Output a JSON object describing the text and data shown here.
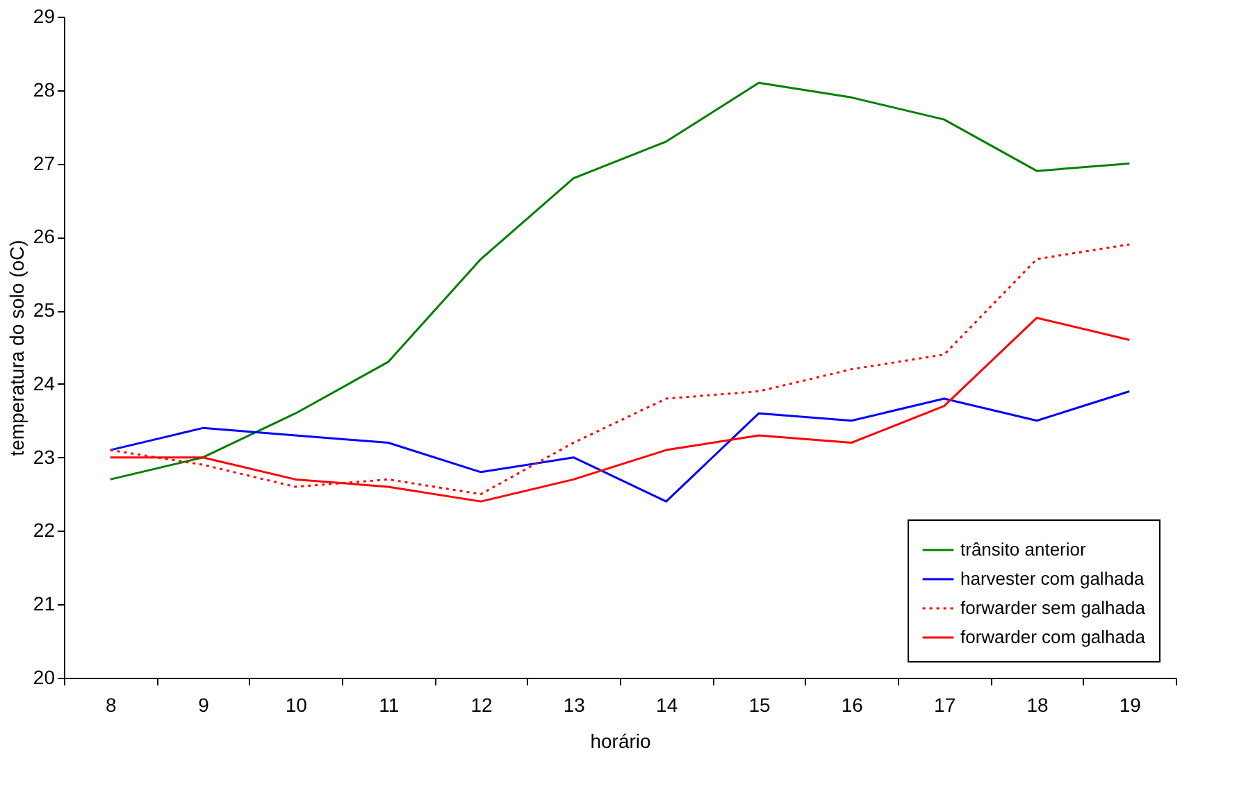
{
  "chart_data": {
    "type": "line",
    "xlabel": "horário",
    "ylabel": "temperatura do solo (oC)",
    "categories": [
      "8",
      "9",
      "10",
      "11",
      "12",
      "13",
      "14",
      "15",
      "16",
      "17",
      "18",
      "19"
    ],
    "ylim": [
      20,
      29
    ],
    "yticks": [
      20,
      21,
      22,
      23,
      24,
      25,
      26,
      27,
      28,
      29
    ],
    "grid": false,
    "legend": "bottom right",
    "marker": "none",
    "series": [
      {
        "name": "trânsito anterior",
        "color": "#008000",
        "line_style": "solid",
        "values": [
          22.7,
          23.0,
          23.6,
          24.3,
          25.7,
          26.8,
          27.3,
          28.1,
          27.9,
          27.6,
          26.9,
          27.0
        ]
      },
      {
        "name": "harvester com galhada",
        "color": "#0000ff",
        "line_style": "solid",
        "values": [
          23.1,
          23.4,
          23.3,
          23.2,
          22.8,
          23.0,
          22.4,
          23.6,
          23.5,
          23.8,
          23.5,
          23.9
        ]
      },
      {
        "name": "forwarder sem galhada",
        "color": "#ff0000",
        "line_style": "dotted",
        "values": [
          23.1,
          22.9,
          22.6,
          22.7,
          22.5,
          23.2,
          23.8,
          23.9,
          24.2,
          24.4,
          25.7,
          25.9
        ]
      },
      {
        "name": "forwarder com galhada",
        "color": "#ff0000",
        "line_style": "solid",
        "values": [
          23.0,
          23.0,
          22.7,
          22.6,
          22.4,
          22.7,
          23.1,
          23.3,
          23.2,
          23.7,
          24.9,
          24.6
        ]
      }
    ]
  }
}
